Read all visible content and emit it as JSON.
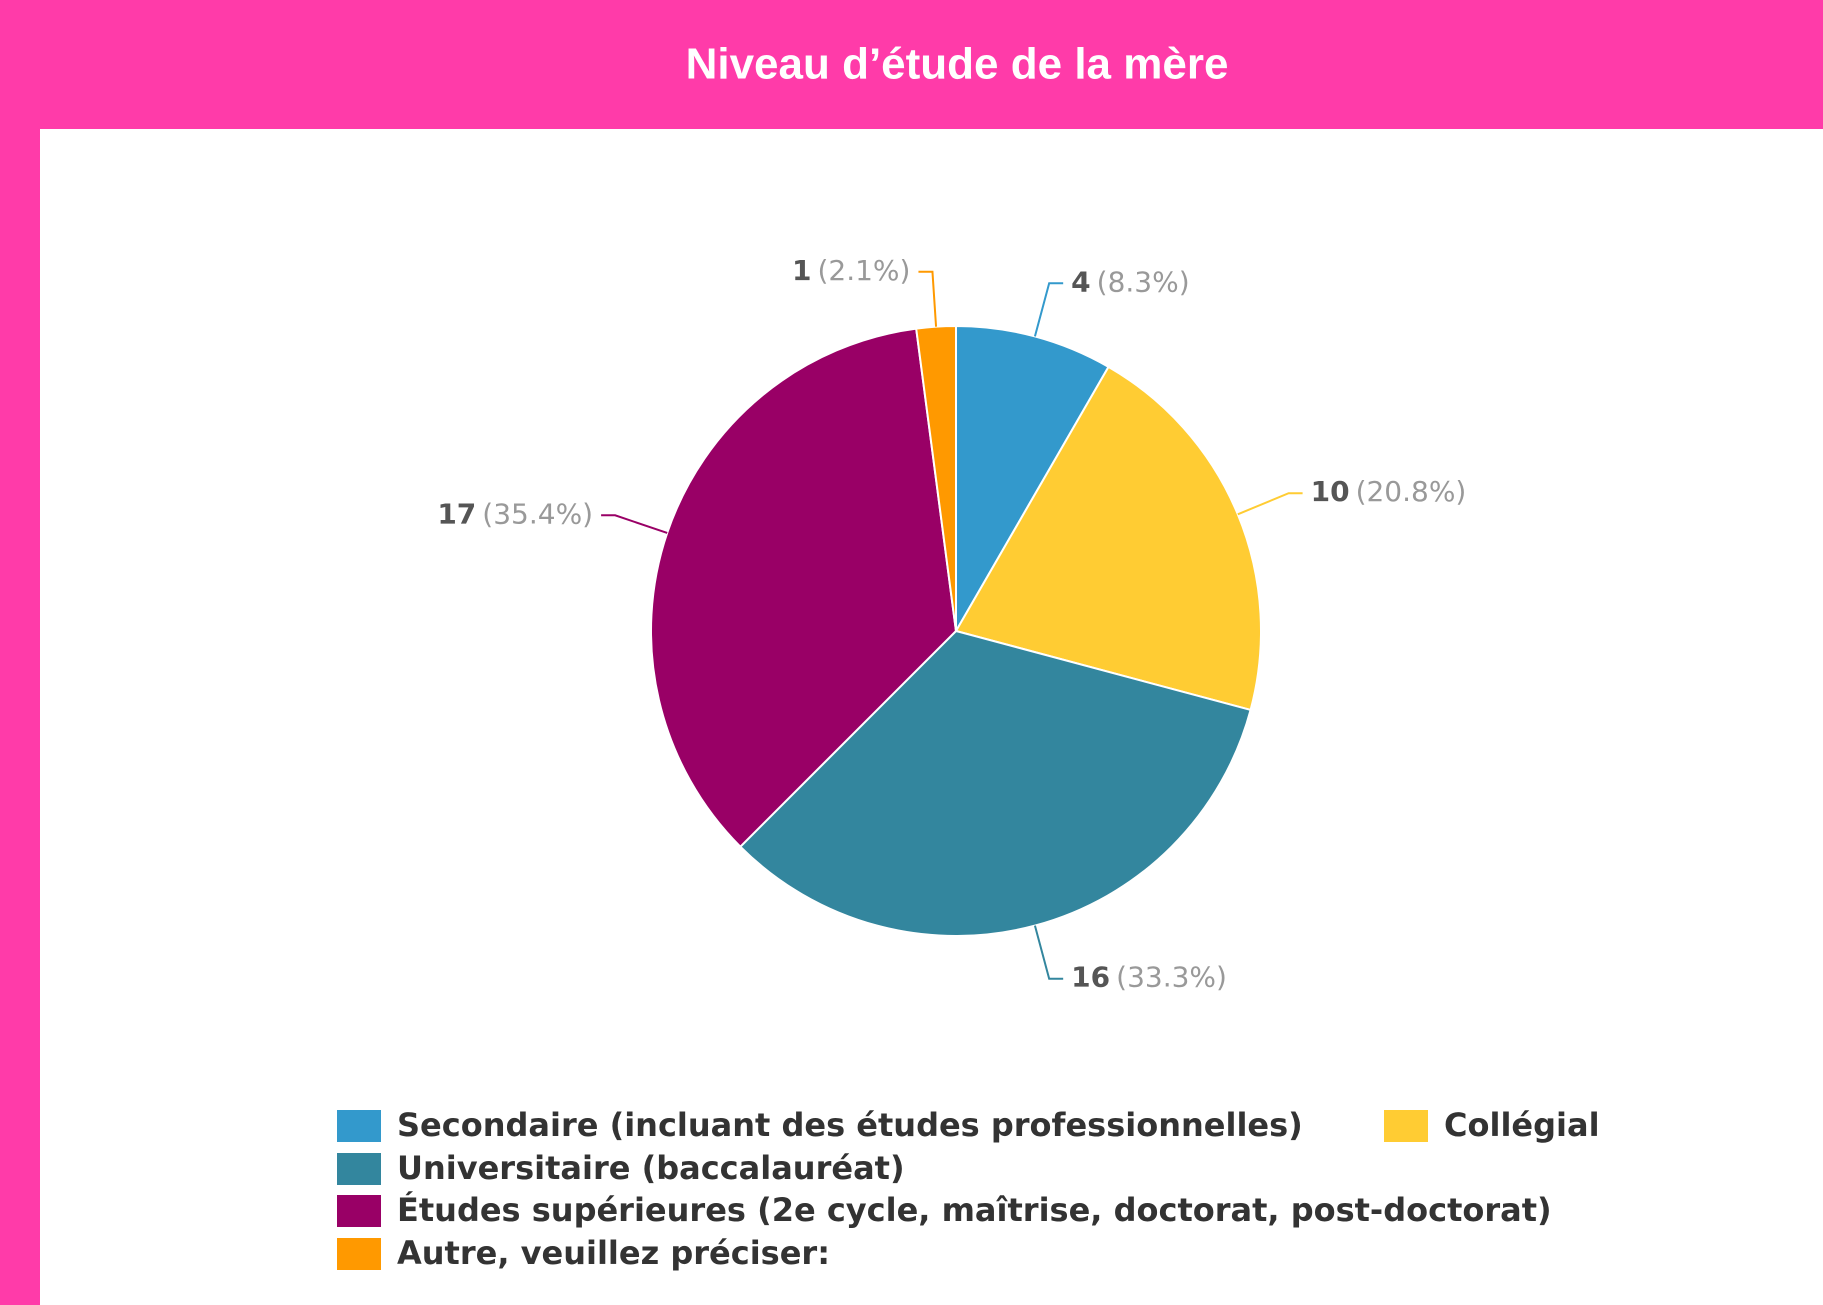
{
  "chart_data": {
    "type": "pie",
    "title": "Niveau d’étude de la mère",
    "categories": [
      "Secondaire (incluant des études professionnelles)",
      "Collégial",
      "Universitaire (baccalauréat)",
      "Études supérieures (2e cycle, maîtrise, doctorat, post-doctorat)",
      "Autre, veuillez préciser:"
    ],
    "values": [
      4,
      10,
      16,
      17,
      1
    ],
    "percentages": [
      8.3,
      20.8,
      33.3,
      35.4,
      2.1
    ],
    "percentage_labels": [
      "(8.3%)",
      "(20.8%)",
      "(33.3%)",
      "(35.4%)",
      "(2.1%)"
    ],
    "colors": [
      "#3399cc",
      "#ffcc33",
      "#33869e",
      "#990066",
      "#ff9900"
    ]
  }
}
